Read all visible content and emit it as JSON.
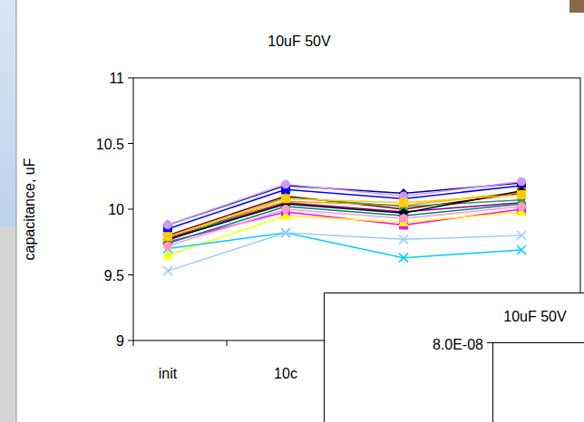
{
  "chart_data": [
    {
      "type": "line",
      "title": "10uF 50V",
      "y_label": "capacitance, uF",
      "categories": [
        "init",
        "10c",
        null,
        null
      ],
      "ylim": [
        9,
        11
      ],
      "yticks": [
        9,
        9.5,
        10,
        10.5,
        11
      ],
      "series": [
        {
          "color": "#000080",
          "marker": "diamond",
          "values": [
            9.88,
            10.18,
            10.12,
            10.2
          ]
        },
        {
          "color": "#ff00ff",
          "marker": "square",
          "values": [
            9.75,
            9.98,
            9.88,
            10.0
          ]
        },
        {
          "color": "#ffff00",
          "marker": "triangle",
          "values": [
            9.65,
            9.95,
            9.9,
            9.98
          ]
        },
        {
          "color": "#00ccff",
          "marker": "x",
          "values": [
            9.7,
            9.82,
            9.63,
            9.69
          ]
        },
        {
          "color": "#800080",
          "marker": "star",
          "values": [
            9.78,
            10.05,
            9.98,
            10.05
          ]
        },
        {
          "color": "#800000",
          "marker": "circle",
          "values": [
            9.8,
            10.1,
            10.0,
            10.12
          ]
        },
        {
          "color": "#008080",
          "marker": "diamond",
          "values": [
            9.74,
            10.02,
            9.95,
            10.04
          ]
        },
        {
          "color": "#0000ff",
          "marker": "square",
          "values": [
            9.85,
            10.15,
            10.08,
            10.18
          ]
        },
        {
          "color": "#99ccff",
          "marker": "x",
          "values": [
            9.53,
            9.82,
            9.77,
            9.8
          ]
        },
        {
          "color": "#cc99ff",
          "marker": "circle",
          "values": [
            9.88,
            10.19,
            10.1,
            10.21
          ]
        },
        {
          "color": "#ff9900",
          "marker": "square",
          "values": [
            9.79,
            10.06,
            10.03,
            10.13
          ]
        },
        {
          "color": "#339966",
          "marker": "triangle",
          "values": [
            9.76,
            10.09,
            10.02,
            10.07
          ]
        },
        {
          "color": "#000000",
          "marker": "diamond",
          "values": [
            9.77,
            10.04,
            9.97,
            10.14
          ]
        },
        {
          "color": "#ff99cc",
          "marker": "circle",
          "values": [
            9.72,
            10.0,
            9.93,
            10.02
          ]
        },
        {
          "color": "#ffcc00",
          "marker": "square",
          "values": [
            9.79,
            10.08,
            10.05,
            10.11
          ]
        }
      ]
    },
    {
      "type": "line",
      "title": "10uF 50V",
      "ylim": [
        0,
        8e-08
      ],
      "yticks": [
        {
          "value": 8e-08,
          "label": "8.0E-08"
        }
      ],
      "series": []
    }
  ]
}
